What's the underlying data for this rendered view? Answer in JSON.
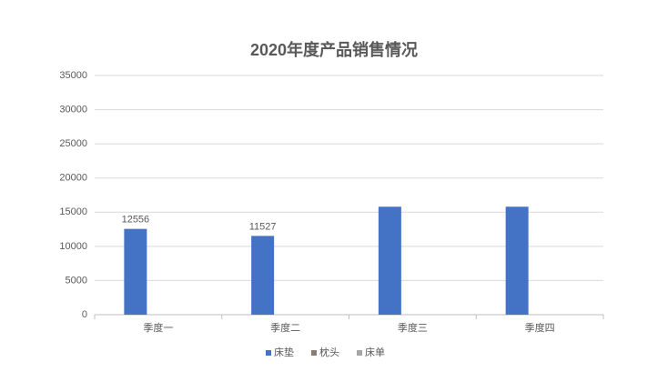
{
  "chart_data": {
    "type": "bar",
    "title": "2020年度产品销售情况",
    "categories": [
      "季度一",
      "季度二",
      "季度三",
      "季度四"
    ],
    "series": [
      {
        "name": "床垫",
        "color": "#4472c4",
        "values": [
          12556,
          11527,
          15800,
          15800
        ],
        "value_labels": [
          "12556",
          "11527",
          null,
          null
        ]
      },
      {
        "name": "枕头",
        "color": "#8c7b70",
        "values": [
          null,
          null,
          null,
          null
        ]
      },
      {
        "name": "床单",
        "color": "#a5a5a5",
        "values": [
          null,
          null,
          null,
          null
        ]
      }
    ],
    "ylim": [
      0,
      35000
    ],
    "yticks": [
      0,
      5000,
      10000,
      15000,
      20000,
      25000,
      30000,
      35000
    ],
    "grid": true,
    "legend": "bottom"
  }
}
